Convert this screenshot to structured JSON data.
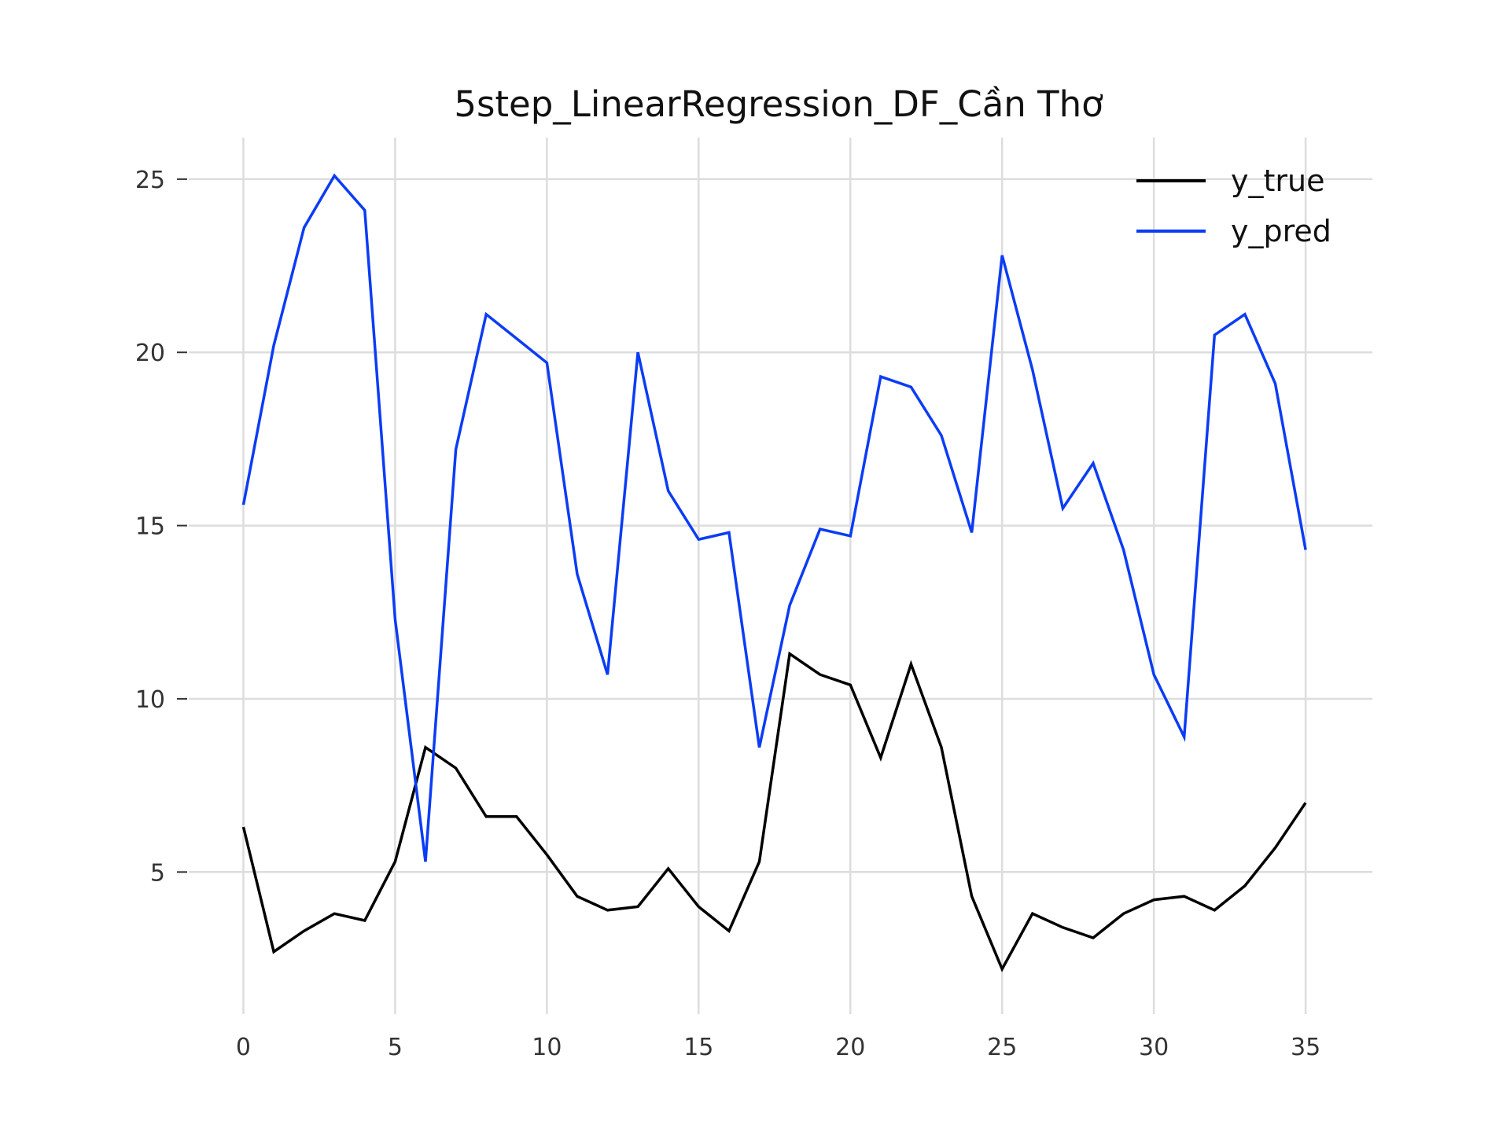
{
  "chart_data": {
    "type": "line",
    "title": "5step_LinearRegression_DF_Cần Thơ",
    "xlabel": "",
    "ylabel": "",
    "xlim": [
      -1.8,
      37.2
    ],
    "ylim": [
      0.9,
      26.2
    ],
    "xticks": [
      0,
      5,
      10,
      15,
      20,
      25,
      30,
      35
    ],
    "yticks": [
      5,
      10,
      15,
      20,
      25
    ],
    "grid": true,
    "legend_position": "top-right",
    "x": [
      0,
      1,
      2,
      3,
      4,
      5,
      6,
      7,
      8,
      9,
      10,
      11,
      12,
      13,
      14,
      15,
      16,
      17,
      18,
      19,
      20,
      21,
      22,
      23,
      24,
      25,
      26,
      27,
      28,
      29,
      30,
      31,
      32,
      33,
      34,
      35
    ],
    "series": [
      {
        "name": "y_true",
        "color": "#000000",
        "values": [
          6.3,
          2.7,
          3.3,
          3.8,
          3.6,
          5.3,
          8.6,
          8.0,
          6.6,
          6.6,
          5.5,
          4.3,
          3.9,
          4.0,
          5.1,
          4.0,
          3.3,
          5.3,
          11.3,
          10.7,
          10.4,
          8.3,
          11.0,
          8.6,
          4.3,
          2.2,
          3.8,
          3.4,
          3.1,
          3.8,
          4.2,
          4.3,
          3.9,
          4.6,
          5.7,
          7.0
        ]
      },
      {
        "name": "y_pred",
        "color": "#0b3cf5",
        "values": [
          15.6,
          20.2,
          23.6,
          25.1,
          24.1,
          12.3,
          5.3,
          17.2,
          21.1,
          20.4,
          19.7,
          13.6,
          10.7,
          20.0,
          16.0,
          14.6,
          14.8,
          8.6,
          12.7,
          14.9,
          14.7,
          19.3,
          19.0,
          17.6,
          14.8,
          22.8,
          19.5,
          15.5,
          16.8,
          14.3,
          10.7,
          8.9,
          20.5,
          21.1,
          19.1,
          14.3
        ]
      }
    ]
  }
}
